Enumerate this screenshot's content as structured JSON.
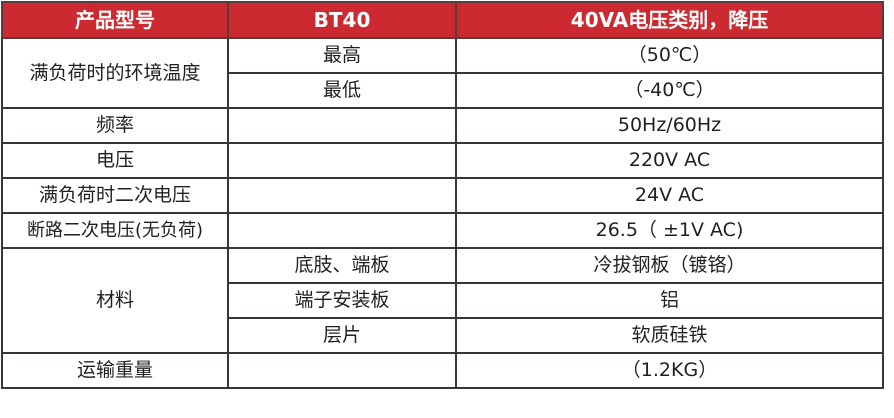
{
  "header": {
    "col1": "产品型号",
    "col2": "BT40",
    "col3": "40VA电压类别，降压"
  },
  "header_color": "#cc2a30",
  "rows": {
    "temp": {
      "label": "满负荷时的环境温度",
      "max_label": "最高",
      "max_value": "（50℃）",
      "min_label": "最低",
      "min_value": "（-40℃）"
    },
    "freq": {
      "label": "频率",
      "value": "50Hz/60Hz"
    },
    "voltage": {
      "label": "电压",
      "value": "220V AC"
    },
    "secondary_full": {
      "label": "满负荷时二次电压",
      "value": "24V AC"
    },
    "secondary_open": {
      "label": "断路二次电压(无负荷)",
      "value": "26.5（ ±1V AC)"
    },
    "material": {
      "label": "材料",
      "items": [
        {
          "part": "底肢、端板",
          "value": "冷拔钢板（镀铬）"
        },
        {
          "part": "端子安装板",
          "value": "铝"
        },
        {
          "part": "层片",
          "value": "软质硅铁"
        }
      ]
    },
    "weight": {
      "label": "运输重量",
      "value": "（1.2KG）"
    }
  }
}
